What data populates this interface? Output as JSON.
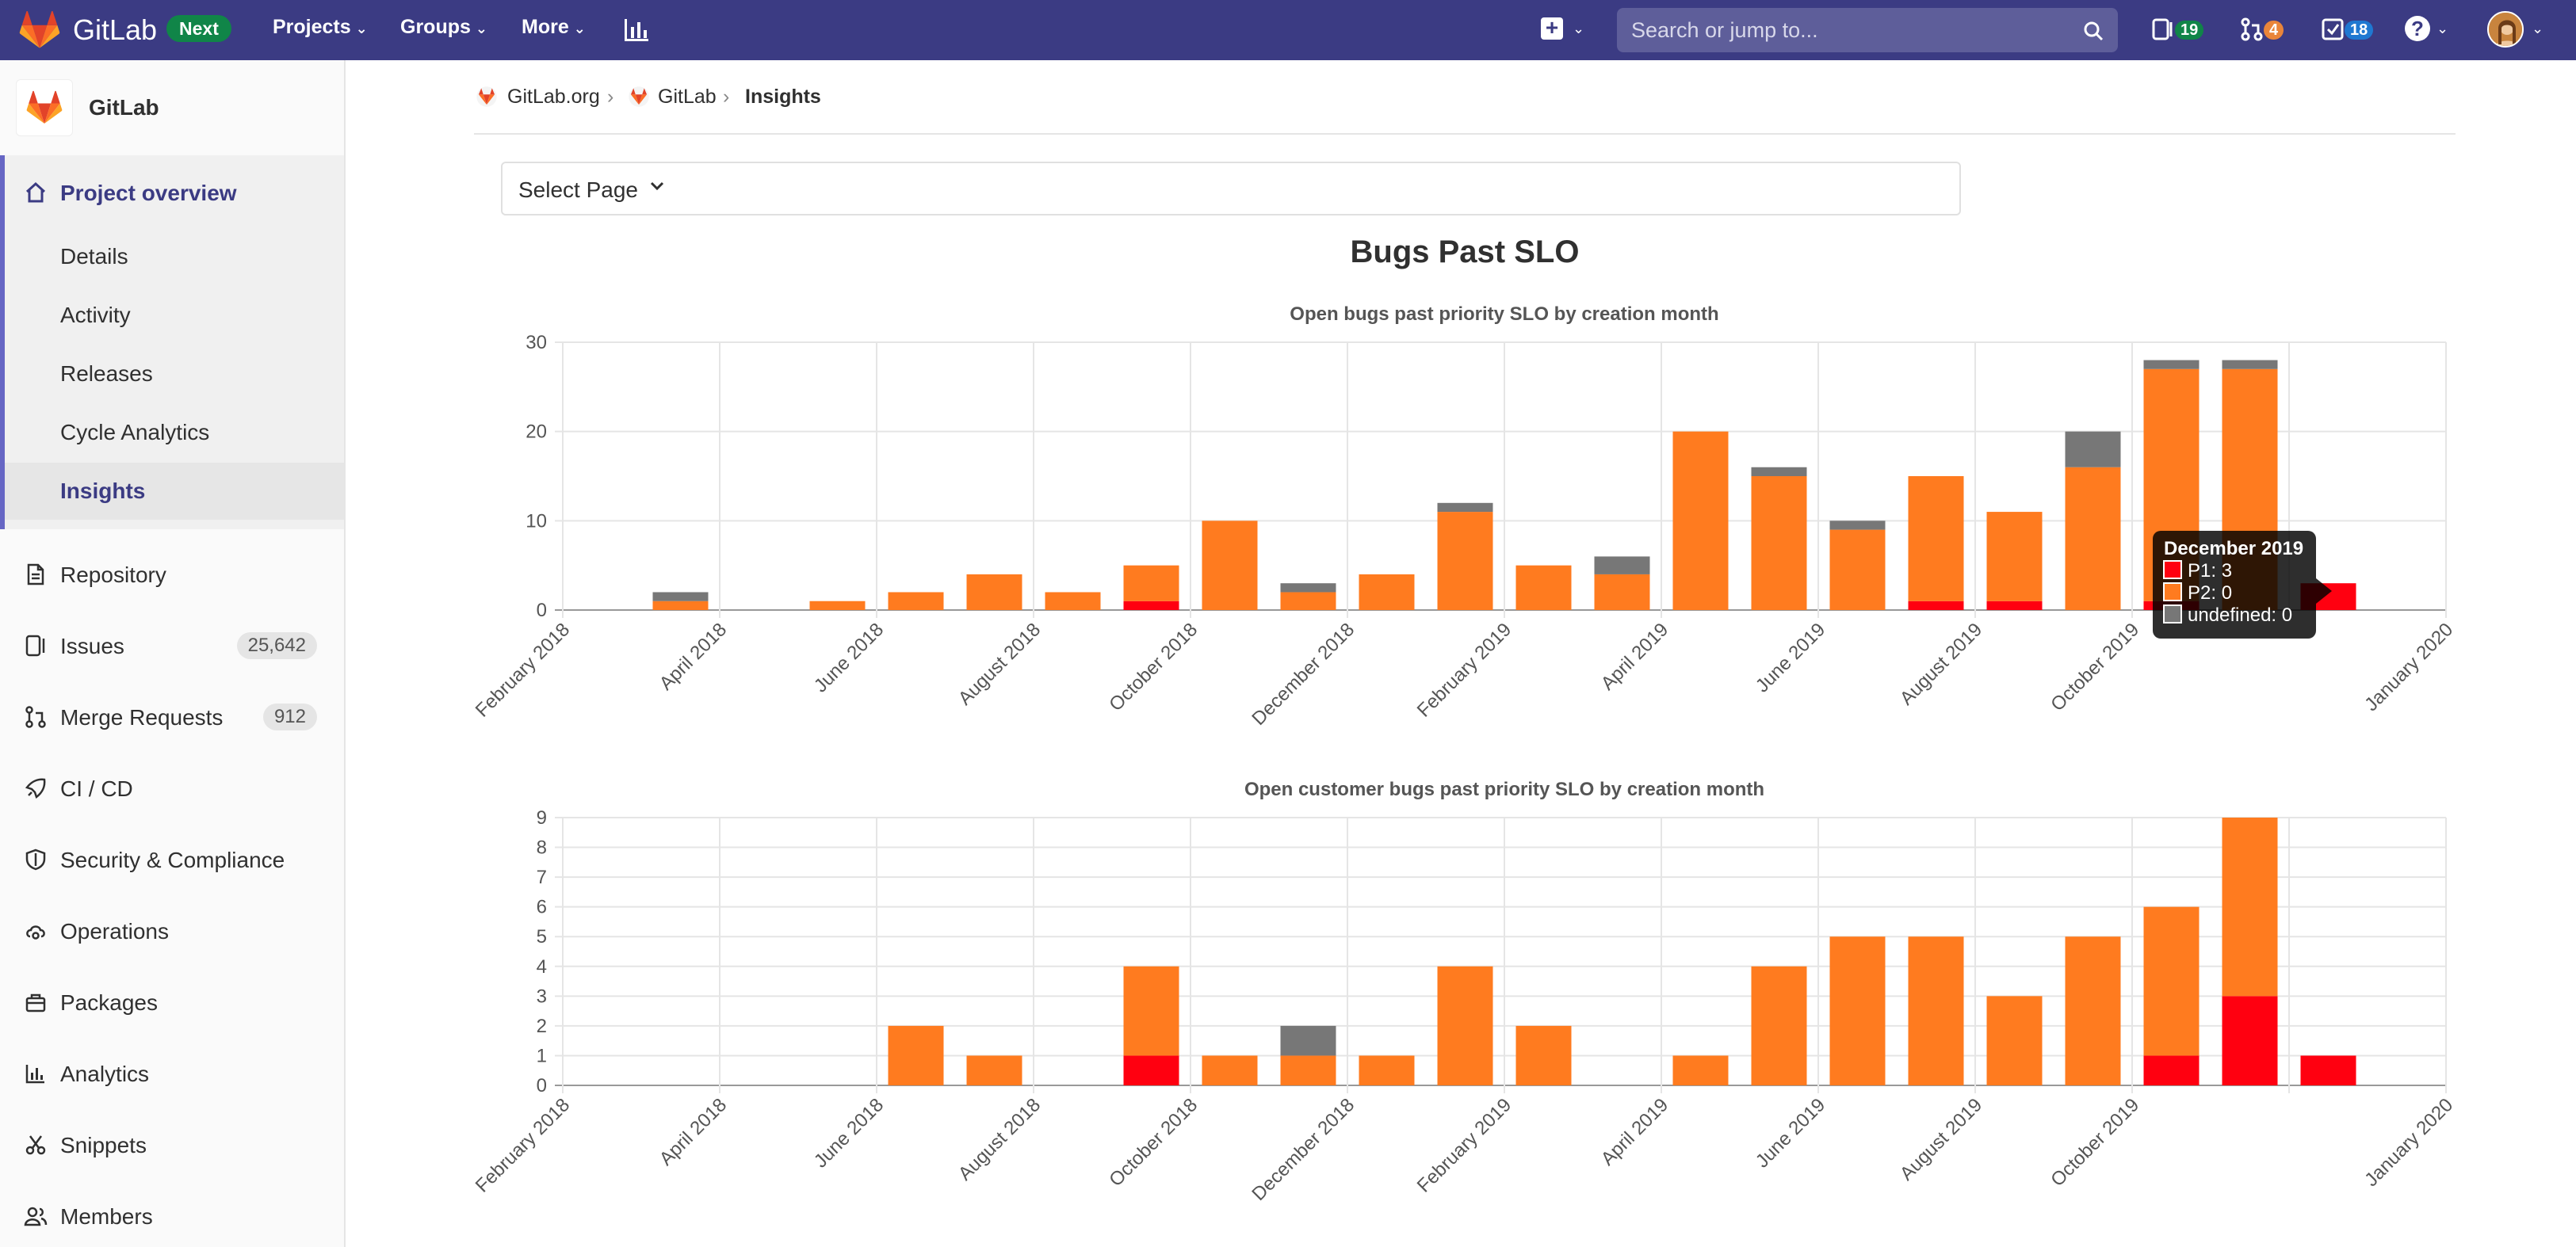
{
  "topbar": {
    "brand": "GitLab",
    "next_badge": "Next",
    "nav": [
      "Projects",
      "Groups",
      "More"
    ],
    "search_placeholder": "Search or jump to...",
    "counters": [
      {
        "name": "issues",
        "value": "19",
        "color": "#108548"
      },
      {
        "name": "merge-requests",
        "value": "4",
        "color": "#e9853a"
      },
      {
        "name": "todos",
        "value": "18",
        "color": "#1f78d1"
      }
    ]
  },
  "sidebar": {
    "project_name": "GitLab",
    "overview": {
      "label": "Project overview",
      "subitems": [
        "Details",
        "Activity",
        "Releases",
        "Cycle Analytics",
        "Insights"
      ]
    },
    "items": [
      {
        "label": "Repository",
        "icon": "document-icon",
        "badge": ""
      },
      {
        "label": "Issues",
        "icon": "issues-icon",
        "badge": "25,642"
      },
      {
        "label": "Merge Requests",
        "icon": "merge-request-icon",
        "badge": "912"
      },
      {
        "label": "CI / CD",
        "icon": "rocket-icon",
        "badge": ""
      },
      {
        "label": "Security & Compliance",
        "icon": "shield-icon",
        "badge": ""
      },
      {
        "label": "Operations",
        "icon": "cloud-gear-icon",
        "badge": ""
      },
      {
        "label": "Packages",
        "icon": "package-icon",
        "badge": ""
      },
      {
        "label": "Analytics",
        "icon": "analytics-icon",
        "badge": ""
      },
      {
        "label": "Snippets",
        "icon": "scissors-icon",
        "badge": ""
      },
      {
        "label": "Members",
        "icon": "members-icon",
        "badge": ""
      }
    ]
  },
  "breadcrumb": [
    "GitLab.org",
    "GitLab",
    "Insights"
  ],
  "select_page": {
    "label": "Select Page"
  },
  "page_title": "Bugs Past SLO",
  "colors": {
    "P1": "#ff0010",
    "P2": "#ff7b1f",
    "undefined": "#777777",
    "nav": "#3b3b83"
  },
  "chart_data": [
    {
      "type": "bar",
      "stacked": true,
      "title": "Open bugs past priority SLO by creation month",
      "x_tick_labels": [
        "February 2018",
        "April 2018",
        "June 2018",
        "August 2018",
        "October 2018",
        "December 2018",
        "February 2019",
        "April 2019",
        "June 2019",
        "August 2019",
        "October 2019",
        "January 2020"
      ],
      "categories": [
        "2018-02",
        "2018-03",
        "2018-04",
        "2018-05",
        "2018-06",
        "2018-07",
        "2018-08",
        "2018-09",
        "2018-10",
        "2018-11",
        "2018-12",
        "2019-01",
        "2019-02",
        "2019-03",
        "2019-04",
        "2019-05",
        "2019-06",
        "2019-07",
        "2019-08",
        "2019-09",
        "2019-10",
        "2019-11",
        "2019-12",
        "2020-01"
      ],
      "series": [
        {
          "name": "P1",
          "values": [
            0,
            0,
            0,
            0,
            0,
            0,
            0,
            1,
            0,
            0,
            0,
            0,
            0,
            0,
            0,
            0,
            0,
            1,
            1,
            0,
            1,
            0,
            3,
            0
          ]
        },
        {
          "name": "P2",
          "values": [
            0,
            1,
            0,
            1,
            2,
            4,
            2,
            4,
            10,
            2,
            4,
            11,
            5,
            4,
            20,
            15,
            9,
            14,
            10,
            16,
            26,
            27,
            0,
            0
          ]
        },
        {
          "name": "undefined",
          "values": [
            0,
            1,
            0,
            0,
            0,
            0,
            0,
            0,
            0,
            1,
            0,
            1,
            0,
            2,
            0,
            1,
            1,
            0,
            0,
            4,
            1,
            1,
            0,
            0
          ]
        }
      ],
      "ylim": [
        0,
        30
      ],
      "yticks": [
        0,
        10,
        20,
        30
      ],
      "grid": true,
      "tooltip": {
        "title": "December 2019",
        "lines": [
          "P1: 3",
          "P2: 0",
          "undefined: 0"
        ]
      }
    },
    {
      "type": "bar",
      "stacked": true,
      "title": "Open customer bugs past priority SLO by creation month",
      "x_tick_labels": [
        "February 2018",
        "April 2018",
        "June 2018",
        "August 2018",
        "October 2018",
        "December 2018",
        "February 2019",
        "April 2019",
        "June 2019",
        "August 2019",
        "October 2019",
        "January 2020"
      ],
      "categories": [
        "2018-02",
        "2018-03",
        "2018-04",
        "2018-05",
        "2018-06",
        "2018-07",
        "2018-08",
        "2018-09",
        "2018-10",
        "2018-11",
        "2018-12",
        "2019-01",
        "2019-02",
        "2019-03",
        "2019-04",
        "2019-05",
        "2019-06",
        "2019-07",
        "2019-08",
        "2019-09",
        "2019-10",
        "2019-11",
        "2019-12",
        "2020-01"
      ],
      "series": [
        {
          "name": "P1",
          "values": [
            0,
            0,
            0,
            0,
            0,
            0,
            0,
            1,
            0,
            0,
            0,
            0,
            0,
            0,
            0,
            0,
            0,
            0,
            0,
            0,
            1,
            3,
            1,
            0
          ]
        },
        {
          "name": "P2",
          "values": [
            0,
            0,
            0,
            0,
            2,
            1,
            0,
            3,
            1,
            1,
            1,
            4,
            2,
            0,
            1,
            4,
            5,
            5,
            3,
            5,
            5,
            6,
            0,
            0
          ]
        },
        {
          "name": "undefined",
          "values": [
            0,
            0,
            0,
            0,
            0,
            0,
            0,
            0,
            0,
            1,
            0,
            0,
            0,
            0,
            0,
            0,
            0,
            0,
            0,
            0,
            0,
            0,
            0,
            0
          ]
        }
      ],
      "ylim": [
        0,
        9
      ],
      "yticks": [
        0,
        1,
        2,
        3,
        4,
        5,
        6,
        7,
        8,
        9
      ],
      "grid": true
    }
  ]
}
